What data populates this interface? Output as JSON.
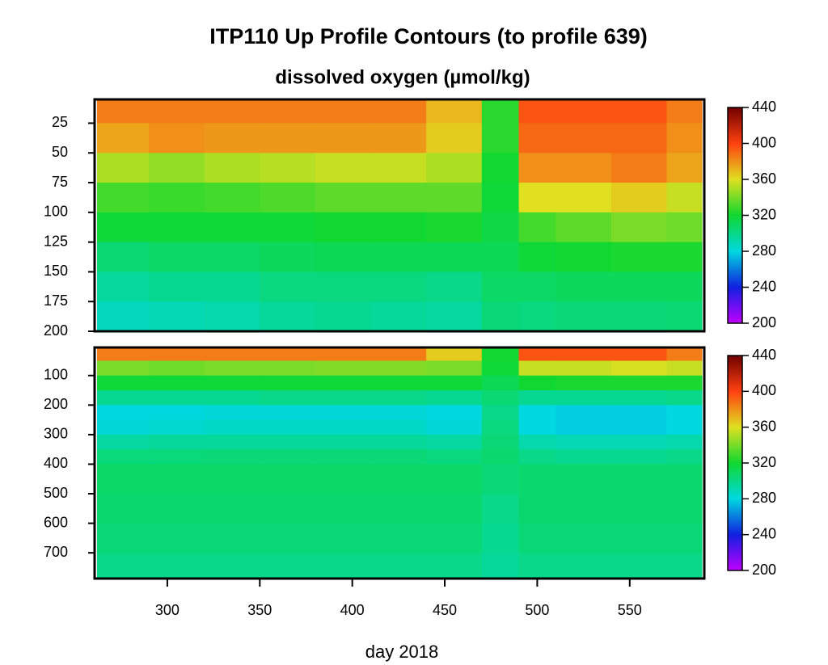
{
  "chart_data": [
    {
      "type": "heatmap",
      "title": "ITP110 Up Profile Contours (to profile 639)",
      "subtitle": "dissolved oxygen (µmol/kg)",
      "xlim": [
        262,
        589
      ],
      "ylim": [
        5,
        200
      ],
      "yticks": [
        25,
        50,
        75,
        100,
        125,
        150,
        175,
        200
      ],
      "x_bins": [
        262,
        290,
        320,
        350,
        380,
        410,
        440,
        470,
        490,
        510,
        540,
        570,
        589
      ],
      "depth_bins": [
        5,
        25,
        50,
        75,
        100,
        125,
        150,
        175,
        200
      ],
      "values": [
        [
          385,
          385,
          385,
          385,
          385,
          385,
          370,
          325,
          395,
          395,
          395,
          385
        ],
        [
          375,
          380,
          378,
          378,
          378,
          378,
          365,
          325,
          390,
          390,
          390,
          380
        ],
        [
          350,
          345,
          350,
          352,
          355,
          355,
          350,
          320,
          380,
          380,
          385,
          375
        ],
        [
          330,
          328,
          330,
          332,
          335,
          335,
          335,
          318,
          360,
          360,
          365,
          355
        ],
        [
          318,
          318,
          318,
          318,
          320,
          320,
          322,
          315,
          330,
          335,
          340,
          338
        ],
        [
          305,
          308,
          308,
          310,
          312,
          312,
          312,
          312,
          318,
          320,
          322,
          322
        ],
        [
          295,
          298,
          298,
          302,
          302,
          302,
          300,
          308,
          308,
          310,
          310,
          310
        ],
        [
          288,
          290,
          292,
          296,
          298,
          296,
          294,
          304,
          302,
          304,
          304,
          305
        ]
      ],
      "clim": [
        200,
        440
      ],
      "cticks": [
        200,
        240,
        280,
        320,
        360,
        400,
        440
      ],
      "colors": [
        "#c000ff",
        "#1020e0",
        "#00d8e0",
        "#10d830",
        "#e0e020",
        "#ff4010",
        "#700000"
      ]
    },
    {
      "type": "heatmap",
      "xlabel": "day 2018",
      "xlim": [
        262,
        589
      ],
      "xticks": [
        300,
        350,
        400,
        450,
        500,
        550
      ],
      "ylim": [
        5,
        787
      ],
      "yticks": [
        100,
        200,
        300,
        400,
        500,
        600,
        700
      ],
      "x_bins": [
        262,
        290,
        320,
        350,
        380,
        410,
        440,
        470,
        490,
        510,
        540,
        570,
        589
      ],
      "depth_bins": [
        5,
        50,
        100,
        150,
        200,
        250,
        300,
        350,
        400,
        500,
        600,
        700,
        787
      ],
      "values": [
        [
          385,
          385,
          385,
          385,
          385,
          385,
          365,
          320,
          395,
          395,
          395,
          385
        ],
        [
          340,
          338,
          340,
          340,
          342,
          342,
          340,
          318,
          355,
          355,
          358,
          355
        ],
        [
          318,
          318,
          318,
          318,
          318,
          318,
          318,
          312,
          320,
          322,
          322,
          322
        ],
        [
          298,
          298,
          298,
          300,
          300,
          300,
          298,
          305,
          298,
          298,
          298,
          300
        ],
        [
          280,
          280,
          282,
          282,
          282,
          282,
          280,
          300,
          280,
          278,
          278,
          280
        ],
        [
          282,
          284,
          286,
          286,
          286,
          286,
          282,
          302,
          280,
          278,
          278,
          280
        ],
        [
          294,
          296,
          296,
          296,
          296,
          296,
          294,
          304,
          292,
          290,
          290,
          292
        ],
        [
          303,
          303,
          304,
          304,
          304,
          304,
          302,
          306,
          300,
          298,
          298,
          300
        ],
        [
          308,
          308,
          308,
          308,
          308,
          308,
          308,
          304,
          306,
          306,
          306,
          306
        ],
        [
          306,
          306,
          306,
          306,
          306,
          306,
          306,
          300,
          306,
          306,
          306,
          306
        ],
        [
          304,
          304,
          304,
          304,
          304,
          304,
          304,
          298,
          304,
          304,
          304,
          304
        ],
        [
          300,
          300,
          300,
          300,
          300,
          300,
          300,
          296,
          300,
          300,
          300,
          300
        ]
      ],
      "clim": [
        200,
        440
      ],
      "cticks": [
        200,
        240,
        280,
        320,
        360,
        400,
        440
      ],
      "colors": [
        "#c000ff",
        "#1020e0",
        "#00d8e0",
        "#10d830",
        "#e0e020",
        "#ff4010",
        "#700000"
      ]
    }
  ]
}
